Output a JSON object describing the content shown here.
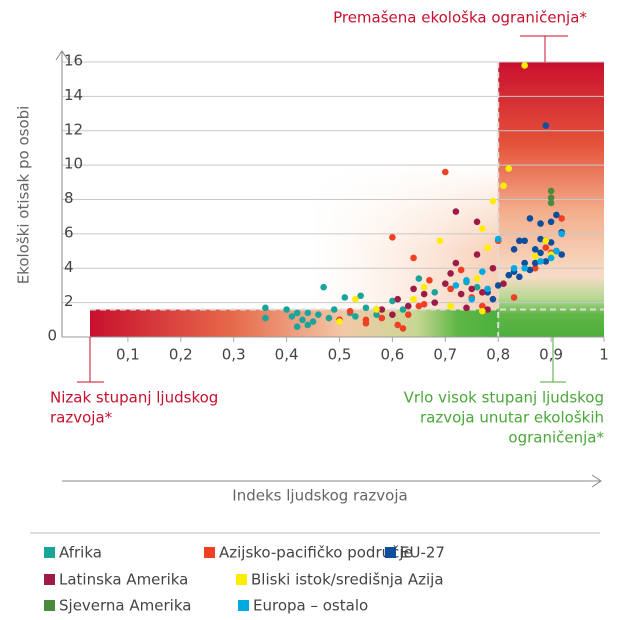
{
  "chart_data": {
    "type": "scatter",
    "xlabel": "Indeks ljudskog razvoja",
    "ylabel": "Ekološki otisak po osobi",
    "xlim": [
      0,
      1
    ],
    "ylim": [
      0,
      16
    ],
    "xticks": [
      {
        "value": 0.1,
        "label": "0,1"
      },
      {
        "value": 0.2,
        "label": "0,2"
      },
      {
        "value": 0.3,
        "label": "0,3"
      },
      {
        "value": 0.4,
        "label": "0,4"
      },
      {
        "value": 0.5,
        "label": "0,5"
      },
      {
        "value": 0.6,
        "label": "0,6"
      },
      {
        "value": 0.7,
        "label": "0,7"
      },
      {
        "value": 0.8,
        "label": "0,8"
      },
      {
        "value": 0.9,
        "label": "0,9"
      },
      1
    ],
    "yticks": [
      0,
      2,
      4,
      6,
      8,
      10,
      12,
      14,
      16
    ],
    "grid": true,
    "reference_lines": {
      "x": 0.8,
      "y": 1.6
    },
    "annotations": [
      {
        "lines": [
          "Premašena ekološka ograničenja*"
        ],
        "color": "#c8102e"
      },
      {
        "lines": [
          "Nizak stupanj ljudskog",
          "razvoja*"
        ],
        "color": "#c8102e"
      },
      {
        "lines": [
          "Vrlo visok stupanj ljudskog",
          "razvoja unutar ekoloških",
          "ograničenja*"
        ],
        "color": "#4aa83a"
      }
    ],
    "series": [
      {
        "name": "Afrika",
        "color": "#1aa59a",
        "x": [
          0.36,
          0.36,
          0.4,
          0.41,
          0.42,
          0.43,
          0.44,
          0.45,
          0.46,
          0.47,
          0.48,
          0.49,
          0.5,
          0.51,
          0.52,
          0.53,
          0.54,
          0.55,
          0.57,
          0.6,
          0.62,
          0.65,
          0.68,
          0.71,
          0.74,
          0.76,
          0.42,
          0.44
        ],
        "values": [
          1.7,
          1.1,
          1.6,
          1.2,
          0.6,
          1.0,
          1.4,
          0.9,
          1.3,
          2.9,
          1.1,
          1.6,
          1.0,
          2.3,
          1.4,
          1.2,
          2.4,
          1.7,
          1.3,
          2.1,
          1.6,
          3.4,
          2.6,
          2.8,
          3.2,
          2.9,
          1.4,
          0.7
        ]
      },
      {
        "name": "Azijsko-pacifičko područje",
        "color": "#ef4023",
        "x": [
          0.5,
          0.52,
          0.55,
          0.57,
          0.58,
          0.6,
          0.61,
          0.62,
          0.63,
          0.64,
          0.65,
          0.67,
          0.7,
          0.71,
          0.73,
          0.75,
          0.77,
          0.8,
          0.83,
          0.87,
          0.89,
          0.92,
          0.9,
          0.55,
          0.66
        ],
        "values": [
          1.0,
          1.5,
          0.8,
          1.6,
          1.1,
          5.8,
          0.7,
          0.5,
          1.3,
          4.6,
          1.8,
          3.3,
          9.6,
          2.8,
          3.9,
          2.3,
          1.8,
          5.6,
          2.3,
          4.0,
          5.2,
          6.9,
          4.9,
          1.0,
          1.9
        ]
      },
      {
        "name": "EU-27",
        "color": "#0d4f9c",
        "x": [
          0.78,
          0.8,
          0.82,
          0.83,
          0.84,
          0.84,
          0.85,
          0.86,
          0.86,
          0.87,
          0.88,
          0.88,
          0.89,
          0.89,
          0.89,
          0.9,
          0.9,
          0.91,
          0.91,
          0.92,
          0.92,
          0.88,
          0.85,
          0.83,
          0.87,
          0.79
        ],
        "values": [
          2.6,
          3.0,
          3.6,
          3.8,
          5.6,
          3.5,
          4.3,
          3.9,
          6.9,
          4.3,
          5.7,
          6.6,
          4.4,
          5.6,
          12.3,
          5.5,
          6.7,
          7.1,
          5.0,
          4.8,
          6.1,
          4.9,
          5.6,
          5.1,
          5.1,
          2.2
        ]
      },
      {
        "name": "Latinska Amerika",
        "color": "#9e1b47",
        "x": [
          0.58,
          0.6,
          0.61,
          0.63,
          0.64,
          0.66,
          0.68,
          0.7,
          0.71,
          0.72,
          0.73,
          0.74,
          0.75,
          0.76,
          0.76,
          0.77,
          0.78,
          0.79,
          0.81,
          0.72
        ],
        "values": [
          1.6,
          1.3,
          2.2,
          1.8,
          2.8,
          2.5,
          2.0,
          3.1,
          3.7,
          7.3,
          2.5,
          1.7,
          2.8,
          4.8,
          6.7,
          2.6,
          1.6,
          4.0,
          3.1,
          4.3
        ]
      },
      {
        "name": "Bliski istok/središnja Azija",
        "color": "#ffed00",
        "x": [
          0.5,
          0.53,
          0.57,
          0.64,
          0.66,
          0.69,
          0.71,
          0.74,
          0.76,
          0.77,
          0.77,
          0.78,
          0.79,
          0.81,
          0.82,
          0.85,
          0.87,
          0.89,
          0.9
        ],
        "values": [
          0.9,
          2.2,
          1.6,
          2.2,
          2.9,
          5.6,
          1.8,
          3.3,
          3.4,
          1.5,
          6.3,
          5.2,
          7.9,
          8.8,
          9.8,
          15.8,
          4.7,
          5.6,
          4.8
        ]
      },
      {
        "name": "Sjeverna Amerika",
        "color": "#4a8a3c",
        "x": [
          0.9,
          0.9,
          0.9
        ],
        "values": [
          8.5,
          8.1,
          7.8
        ]
      },
      {
        "name": "Europa – ostalo",
        "color": "#00a9e0",
        "x": [
          0.72,
          0.74,
          0.75,
          0.77,
          0.78,
          0.8,
          0.83,
          0.85,
          0.88,
          0.9,
          0.92,
          0.91
        ],
        "values": [
          3.0,
          3.3,
          2.2,
          3.8,
          2.8,
          5.7,
          4.0,
          4.0,
          4.4,
          4.6,
          6.0,
          5.0
        ]
      }
    ]
  }
}
